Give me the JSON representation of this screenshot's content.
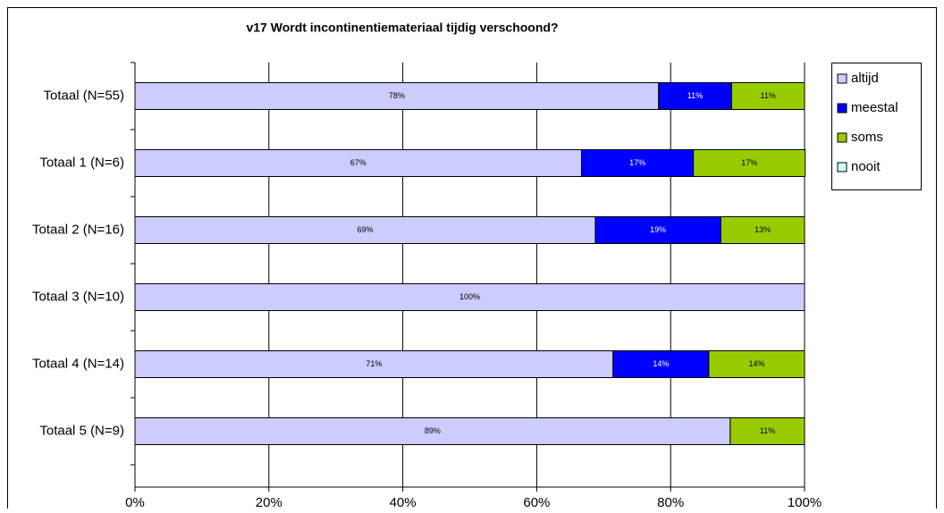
{
  "chart_data": {
    "type": "stacked_barh",
    "title": "v17 Wordt incontinentiemateriaal tijdig verschoond?",
    "categories": [
      "Totaal (N=55)",
      "Totaal 1 (N=6)",
      "Totaal 2 (N=16)",
      "Totaal 3 (N=10)",
      "Totaal 4 (N=14)",
      "Totaal 5 (N=9)"
    ],
    "series": [
      {
        "name": "altijd",
        "color": "#ccccff",
        "values": [
          78.2,
          66.7,
          68.75,
          100,
          71.4,
          88.9
        ],
        "value_labels": [
          "78%",
          "67%",
          "69%",
          "100%",
          "71%",
          "89%"
        ]
      },
      {
        "name": "meestal",
        "color": "#0000ff",
        "values": [
          10.9,
          16.7,
          18.75,
          0,
          14.3,
          0
        ],
        "value_labels": [
          "11%",
          "17%",
          "19%",
          null,
          "14%",
          null
        ]
      },
      {
        "name": "soms",
        "color": "#99cc00",
        "values": [
          10.9,
          16.7,
          12.5,
          0,
          14.3,
          11.1
        ],
        "value_labels": [
          "11%",
          "17%",
          "13%",
          null,
          "14%",
          "11%"
        ]
      },
      {
        "name": "nooit",
        "color": "#ccffff",
        "values": [
          0,
          0,
          0,
          0,
          0,
          0
        ],
        "value_labels": [
          null,
          null,
          null,
          null,
          null,
          null
        ]
      }
    ],
    "xlim": [
      0,
      100
    ],
    "xticks": [
      {
        "value": 0,
        "label": "0%"
      },
      {
        "value": 20,
        "label": "20%"
      },
      {
        "value": 40,
        "label": "40%"
      },
      {
        "value": 60,
        "label": "60%"
      },
      {
        "value": 80,
        "label": "80%"
      },
      {
        "value": 100,
        "label": "100%"
      }
    ],
    "grid": true,
    "legend": "right"
  }
}
